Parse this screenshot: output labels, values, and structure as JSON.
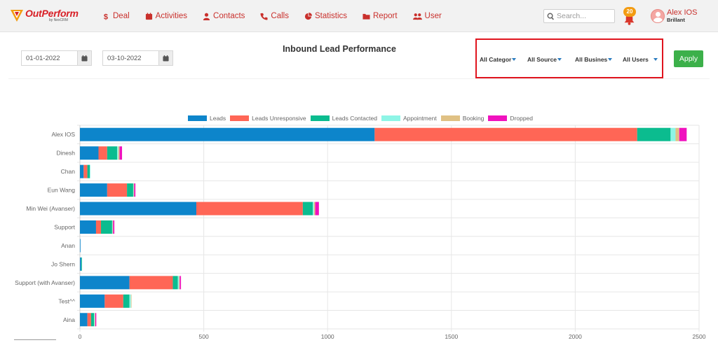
{
  "app": {
    "brand_name": "OutPerform",
    "brand_sub": "by NexCRM"
  },
  "nav": {
    "items": [
      {
        "label": "Deal",
        "icon": "dollar-icon"
      },
      {
        "label": "Activities",
        "icon": "calendar-icon"
      },
      {
        "label": "Contacts",
        "icon": "person-icon"
      },
      {
        "label": "Calls",
        "icon": "phone-icon"
      },
      {
        "label": "Statistics",
        "icon": "pie-chart-icon"
      },
      {
        "label": "Report",
        "icon": "folder-icon"
      },
      {
        "label": "User",
        "icon": "users-icon"
      }
    ]
  },
  "search": {
    "placeholder": "Search..."
  },
  "notifications": {
    "count": "20"
  },
  "user": {
    "name": "Alex IOS",
    "company": "Brillant"
  },
  "filters": {
    "start_date": "01-01-2022",
    "end_date": "03-10-2022",
    "category": "All Categor",
    "source": "All Source",
    "business": "All Busines",
    "users": "All Users",
    "apply_label": "Apply"
  },
  "colors": {
    "accent": "#c9302c",
    "apply": "#3cb04a",
    "highlight_box": "#e0141e"
  },
  "chart_data": {
    "type": "bar",
    "orientation": "horizontal",
    "stacked": true,
    "title": "Inbound Lead Performance",
    "legend_position": "top",
    "grid": true,
    "xlim": [
      0,
      2500
    ],
    "xticks": [
      0,
      500,
      1000,
      1500,
      2000,
      2500
    ],
    "categories": [
      "Alex IOS",
      "Dinesh",
      "Chan",
      "Eun Wang",
      "Min Wei (Avanser)",
      "Support",
      "Anan",
      "Jo Shern",
      "Support (with Avanser)",
      "Test^^",
      "Aina"
    ],
    "series": [
      {
        "name": "Leads",
        "color": "#0d85cb",
        "values": [
          1190,
          75,
          15,
          110,
          470,
          65,
          2,
          5,
          200,
          100,
          30
        ]
      },
      {
        "name": "Leads Unresponsive",
        "color": "#ff6656",
        "values": [
          1060,
          35,
          15,
          80,
          430,
          20,
          0,
          0,
          175,
          75,
          15
        ]
      },
      {
        "name": "Leads Contacted",
        "color": "#0bbc8f",
        "values": [
          135,
          40,
          10,
          25,
          40,
          45,
          0,
          3,
          20,
          25,
          12
        ]
      },
      {
        "name": "Appointment",
        "color": "#8ef5e6",
        "values": [
          20,
          5,
          2,
          2,
          5,
          2,
          0,
          0,
          5,
          6,
          3
        ]
      },
      {
        "name": "Booking",
        "color": "#e0c184",
        "values": [
          15,
          5,
          0,
          2,
          5,
          2,
          0,
          0,
          3,
          2,
          2
        ]
      },
      {
        "name": "Dropped",
        "color": "#f012be",
        "values": [
          30,
          10,
          0,
          5,
          15,
          5,
          0,
          0,
          5,
          0,
          4
        ]
      }
    ]
  }
}
